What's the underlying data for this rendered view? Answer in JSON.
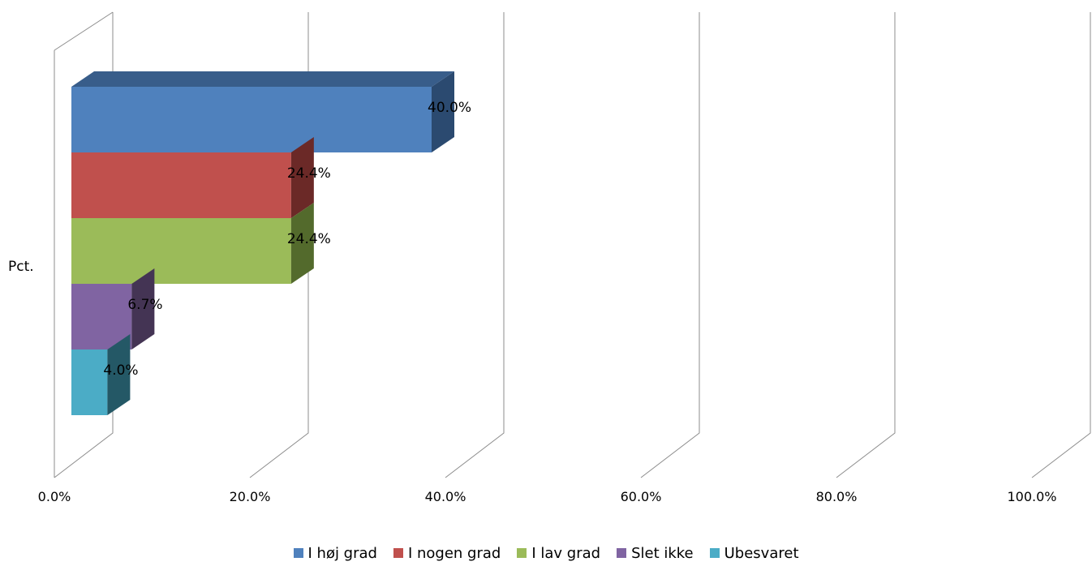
{
  "chart_data": {
    "type": "bar",
    "orientation": "horizontal",
    "three_d": true,
    "categories": [
      "Pct."
    ],
    "xlim": [
      0,
      100
    ],
    "x_ticks": [
      0,
      20,
      40,
      60,
      80,
      100
    ],
    "x_tick_labels": [
      "0.0%",
      "20.0%",
      "40.0%",
      "60.0%",
      "80.0%",
      "100.0%"
    ],
    "grid": true,
    "legend_position": "bottom",
    "series": [
      {
        "name": "I høj grad",
        "value": 40.0,
        "label": "40.0%",
        "color": "#4F81BD",
        "side": "#2B4A70",
        "top": "#385D8A"
      },
      {
        "name": "I nogen grad",
        "value": 24.4,
        "label": "24.4%",
        "color": "#C0504D",
        "side": "#6B2927",
        "top": "#943C39"
      },
      {
        "name": "I lav grad",
        "value": 24.4,
        "label": "24.4%",
        "color": "#9BBB59",
        "side": "#536A2C",
        "top": "#77933C"
      },
      {
        "name": "Slet ikke",
        "value": 6.7,
        "label": "6.7%",
        "color": "#8064A2",
        "side": "#443454",
        "top": "#5F4A7A"
      },
      {
        "name": "Ubesvaret",
        "value": 4.0,
        "label": "4.0%",
        "color": "#4BACC6",
        "side": "#245866",
        "top": "#31859C"
      }
    ]
  }
}
